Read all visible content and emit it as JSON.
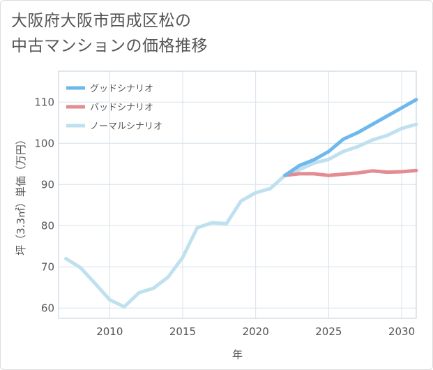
{
  "title": {
    "line1": "大阪府大阪市西成区松の",
    "line2": "中古マンションの価格推移"
  },
  "chart_data": {
    "type": "line",
    "title": "大阪府大阪市西成区松の中古マンションの価格推移",
    "xlabel": "年",
    "ylabel": "坪（3.3㎡）単価（万円）",
    "xlim": [
      2006.5,
      2031
    ],
    "ylim": [
      57.5,
      117.5
    ],
    "x_ticks": [
      2010,
      2015,
      2020,
      2025,
      2030
    ],
    "y_ticks": [
      60,
      70,
      80,
      90,
      100,
      110
    ],
    "grid": true,
    "legend_position": "top-left",
    "series": [
      {
        "name": "グッドシナリオ",
        "color": "#6db8ec",
        "x": [
          2022,
          2023,
          2024,
          2025,
          2026,
          2027,
          2028,
          2029,
          2030,
          2031
        ],
        "values": [
          92.2,
          94.6,
          96,
          98,
          101,
          102.6,
          104.6,
          106.6,
          108.6,
          110.6
        ]
      },
      {
        "name": "バッドシナリオ",
        "color": "#e38c92",
        "x": [
          2022,
          2023,
          2024,
          2025,
          2026,
          2027,
          2028,
          2029,
          2030,
          2031
        ],
        "values": [
          92.2,
          92.6,
          92.6,
          92.2,
          92.5,
          92.8,
          93.3,
          93.0,
          93.1,
          93.4
        ]
      },
      {
        "name": "ノーマルシナリオ",
        "color": "#bfe1ef",
        "x": [
          2007,
          2008,
          2009,
          2010,
          2011,
          2012,
          2013,
          2014,
          2015,
          2016,
          2017,
          2018,
          2019,
          2020,
          2021,
          2022,
          2023,
          2024,
          2025,
          2026,
          2027,
          2028,
          2029,
          2030,
          2031
        ],
        "values": [
          72,
          69.8,
          66,
          62,
          60.3,
          63.7,
          64.8,
          67.5,
          72.3,
          79.5,
          80.7,
          80.5,
          86,
          88,
          89,
          92.2,
          93.6,
          95.2,
          96.1,
          98,
          99.2,
          100.8,
          101.9,
          103.6,
          104.6
        ]
      }
    ]
  }
}
